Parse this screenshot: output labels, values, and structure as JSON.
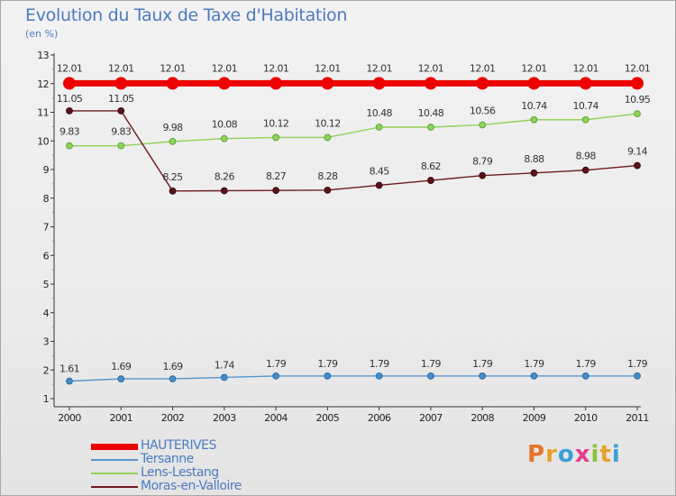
{
  "title": "Evolution du Taux de Taxe d'Habitation",
  "subtitle": "(en %)",
  "logo": "Proxiti",
  "logo_colors": [
    "#e8732a",
    "#e8a02a",
    "#3aa0d8",
    "#e83a8a",
    "#8ac43a",
    "#e8a02a",
    "#3aa0d8"
  ],
  "chart_data": {
    "type": "line",
    "title": "Evolution du Taux de Taxe d'Habitation",
    "ylabel": "(en %)",
    "xlabel": "",
    "x": [
      "2000",
      "2001",
      "2002",
      "2003",
      "2004",
      "2005",
      "2006",
      "2007",
      "2008",
      "2009",
      "2010",
      "2011"
    ],
    "ylim": [
      1,
      13
    ],
    "yticks": [
      "1",
      "2",
      "3",
      "4",
      "5",
      "6",
      "7",
      "8",
      "9",
      "10",
      "11",
      "12",
      "13"
    ],
    "grid": false,
    "legend_position": "bottom-left",
    "series": [
      {
        "name": "HAUTERIVES",
        "color": "#ee0000",
        "values": [
          12.01,
          12.01,
          12.01,
          12.01,
          12.01,
          12.01,
          12.01,
          12.01,
          12.01,
          12.01,
          12.01,
          12.01
        ],
        "labels": [
          "12.01",
          "12.01",
          "12.01",
          "12.01",
          "12.01",
          "12.01",
          "12.01",
          "12.01",
          "12.01",
          "12.01",
          "12.01",
          "12.01"
        ]
      },
      {
        "name": "Tersanne",
        "color": "#5596cf",
        "values": [
          1.61,
          1.69,
          1.69,
          1.74,
          1.79,
          1.79,
          1.79,
          1.79,
          1.79,
          1.79,
          1.79,
          1.79
        ],
        "labels": [
          "1.61",
          "1.69",
          "1.69",
          "1.74",
          "1.79",
          "1.79",
          "1.79",
          "1.79",
          "1.79",
          "1.79",
          "1.79",
          "1.79"
        ]
      },
      {
        "name": "Lens-Lestang",
        "color": "#8fd35a",
        "values": [
          9.83,
          9.83,
          9.98,
          10.08,
          10.12,
          10.12,
          10.48,
          10.48,
          10.56,
          10.74,
          10.74,
          10.95
        ],
        "labels": [
          "9.83",
          "9.83",
          "9.98",
          "10.08",
          "10.12",
          "10.12",
          "10.48",
          "10.48",
          "10.56",
          "10.74",
          "10.74",
          "10.95"
        ]
      },
      {
        "name": "Moras-en-Valloire",
        "color": "#6e1a1e",
        "values": [
          11.05,
          11.05,
          8.25,
          8.26,
          8.27,
          8.28,
          8.45,
          8.62,
          8.79,
          8.88,
          8.98,
          9.14
        ],
        "labels": [
          "11.05",
          "11.05",
          "8.25",
          "8.26",
          "8.27",
          "8.28",
          "8.45",
          "8.62",
          "8.79",
          "8.88",
          "8.98",
          "9.14"
        ]
      }
    ]
  }
}
